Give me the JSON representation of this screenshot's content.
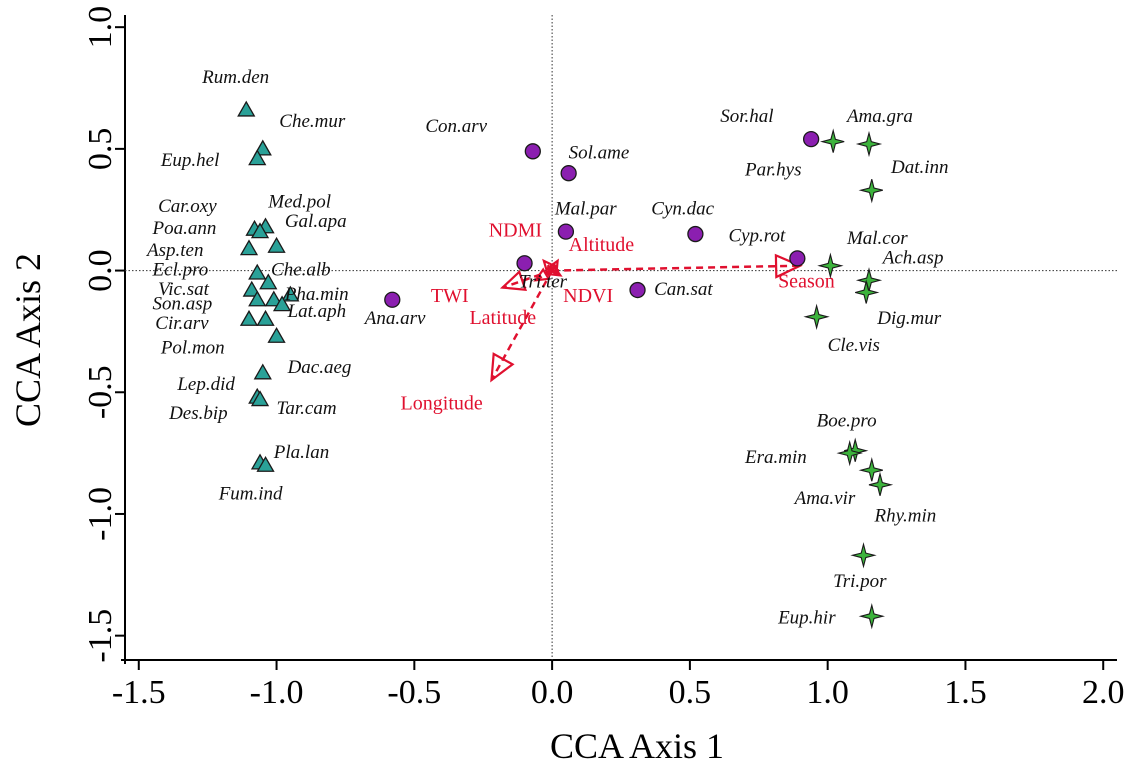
{
  "chart_data": {
    "type": "scatter",
    "title": "",
    "xlabel": "CCA Axis 1",
    "ylabel": "CCA Axis 2",
    "xlim": [
      -1.55,
      2.05
    ],
    "ylim": [
      -1.6,
      1.05
    ],
    "x_ticks": [
      -1.5,
      -1.0,
      -0.5,
      0.0,
      0.5,
      1.0,
      1.5,
      2.0
    ],
    "x_tick_labels": [
      "-1.5",
      "-1.0",
      "-0.5",
      "0.0",
      "0.5",
      "1.0",
      "1.5",
      "2.0"
    ],
    "y_ticks": [
      -1.5,
      -1.0,
      -0.5,
      0.0,
      0.5,
      1.0
    ],
    "y_tick_labels": [
      "-1.5",
      "-1.0",
      "-0.5",
      "0.0",
      "0.5",
      "1.0"
    ],
    "reference_lines": {
      "x": 0,
      "y": 0,
      "style": "dotted"
    },
    "colors": {
      "triangle_fill": "#2aa198",
      "circle_fill": "#8b1fb0",
      "star_fill": "#3cb33c",
      "marker_stroke": "#1a1a1a",
      "arrow": "#e0102f"
    },
    "series": [
      {
        "marker": "triangle",
        "points": [
          {
            "label": "Rum.den",
            "x": -1.11,
            "y": 0.66
          },
          {
            "label": "Che.mur",
            "x": -1.05,
            "y": 0.5
          },
          {
            "label": "Eup.hel",
            "x": -1.07,
            "y": 0.46
          },
          {
            "label": "Car.oxy",
            "x": -1.08,
            "y": 0.17
          },
          {
            "label": "Med.pol",
            "x": -1.04,
            "y": 0.18
          },
          {
            "label": "Poa.ann",
            "x": -1.06,
            "y": 0.16
          },
          {
            "label": "Gal.apa",
            "x": -1.0,
            "y": 0.1
          },
          {
            "label": "Asp.ten",
            "x": -1.1,
            "y": 0.09
          },
          {
            "label": "Ecl.pro",
            "x": -1.07,
            "y": -0.01
          },
          {
            "label": "Che.alb",
            "x": -1.03,
            "y": -0.05
          },
          {
            "label": "Vic.sat",
            "x": -1.09,
            "y": -0.08
          },
          {
            "label": "Pha.min",
            "x": -0.95,
            "y": -0.1
          },
          {
            "label": "Son.asp",
            "x": -1.07,
            "y": -0.12
          },
          {
            "label": "Lat.aph",
            "x": -1.01,
            "y": -0.12
          },
          {
            "label": "Cir.arv",
            "x": -0.98,
            "y": -0.14
          },
          {
            "label": "Pol.mon",
            "x": -1.1,
            "y": -0.2
          },
          {
            "label": "Dac.aeg",
            "x": -1.04,
            "y": -0.2
          },
          {
            "label": "Lep.did",
            "x": -1.0,
            "y": -0.27
          },
          {
            "label": "Des.bip",
            "x": -1.05,
            "y": -0.42
          },
          {
            "label": "Tar.cam",
            "x": -1.07,
            "y": -0.52
          },
          {
            "label": "Pla.lan",
            "x": -1.06,
            "y": -0.53
          },
          {
            "label": "Fum.ind",
            "x": -1.06,
            "y": -0.79
          },
          {
            "label": "Fum.ind",
            "x": -1.04,
            "y": -0.8
          }
        ],
        "label_points": [
          {
            "text": "Rum.den",
            "lx": -1.27,
            "ly": 0.78
          },
          {
            "text": "Che.mur",
            "lx": -0.99,
            "y_hint": true,
            "ly": 0.59
          },
          {
            "text": "Eup.hel",
            "lx": -1.43,
            "ly": 0.44
          },
          {
            "text": "Car.oxy",
            "lx": -1.43,
            "ly": 0.24
          },
          {
            "text": "Med.pol",
            "lx": -1.03,
            "ly": 0.26
          },
          {
            "text": "Poa.ann",
            "lx": -1.45,
            "ly": 0.15
          },
          {
            "text": "Gal.apa",
            "lx": -0.97,
            "ly": 0.18
          },
          {
            "text": "Asp.ten",
            "lx": -1.47,
            "ly": 0.06
          },
          {
            "text": "Ecl.pro",
            "lx": -1.45,
            "ly": -0.02
          },
          {
            "text": "Che.alb",
            "lx": -1.02,
            "ly": -0.02
          },
          {
            "text": "Vic.sat",
            "lx": -1.43,
            "ly": -0.1
          },
          {
            "text": "Pha.min",
            "lx": -0.98,
            "ly": -0.12
          },
          {
            "text": "Son.asp",
            "lx": -1.45,
            "ly": -0.16
          },
          {
            "text": "Lat.aph",
            "lx": -0.96,
            "ly": -0.19
          },
          {
            "text": "Cir.arv",
            "lx": -1.44,
            "ly": -0.24
          },
          {
            "text": "Pol.mon",
            "lx": -1.42,
            "ly": -0.34
          },
          {
            "text": "Dac.aeg",
            "lx": -0.96,
            "ly": -0.42
          },
          {
            "text": "Lep.did",
            "lx": -1.36,
            "ly": -0.49
          },
          {
            "text": "Tar.cam",
            "lx": -1.0,
            "ly": -0.59
          },
          {
            "text": "Des.bip",
            "lx": -1.39,
            "ly": -0.61
          },
          {
            "text": "Pla.lan",
            "lx": -1.01,
            "ly": -0.77
          },
          {
            "text": "Fum.ind",
            "lx": -1.21,
            "ly": -0.94
          }
        ]
      },
      {
        "marker": "circle",
        "points": [
          {
            "label": "Con.arv",
            "x": -0.07,
            "y": 0.49
          },
          {
            "label": "Sol.ame",
            "x": 0.06,
            "y": 0.4
          },
          {
            "label": "Mal.par",
            "x": 0.05,
            "y": 0.16
          },
          {
            "label": "Cyn.dac",
            "x": 0.52,
            "y": 0.15
          },
          {
            "label": "Cyp.rot",
            "x": 0.89,
            "y": 0.05
          },
          {
            "label": "Tri.ter",
            "x": -0.1,
            "y": 0.03
          },
          {
            "label": "Ana.arv",
            "x": -0.58,
            "y": -0.12
          },
          {
            "label": "Can.sat",
            "x": 0.31,
            "y": -0.08
          },
          {
            "label": "Sor.hal",
            "x": 0.94,
            "y": 0.54
          }
        ]
      },
      {
        "marker": "star",
        "points": [
          {
            "label": "Ama.gra",
            "x": 1.02,
            "y": 0.53
          },
          {
            "label": "Ama.gra",
            "x": 1.15,
            "y": 0.52
          },
          {
            "label": "Dat.inn",
            "x": 1.16,
            "y": 0.33
          },
          {
            "label": "Mal.cor",
            "x": 1.01,
            "y": 0.02
          },
          {
            "label": "Ach.asp",
            "x": 1.15,
            "y": -0.04
          },
          {
            "label": "Ach.asp",
            "x": 1.14,
            "y": -0.09
          },
          {
            "label": "Dig.mur",
            "x": 0.96,
            "y": -0.19
          },
          {
            "label": "Boe.pro",
            "x": 1.1,
            "y": -0.74
          },
          {
            "label": "Era.min",
            "x": 1.08,
            "y": -0.75
          },
          {
            "label": "Ama.vir",
            "x": 1.16,
            "y": -0.82
          },
          {
            "label": "Rhy.min",
            "x": 1.19,
            "y": -0.88
          },
          {
            "label": "Tri.por",
            "x": 1.13,
            "y": -1.17
          },
          {
            "label": "Eup.hir",
            "x": 1.16,
            "y": -1.42
          }
        ]
      }
    ],
    "text_labels": [
      {
        "text": "Rum.den",
        "x": -1.27,
        "y": 0.77
      },
      {
        "text": "Che.mur",
        "x": -0.99,
        "y": 0.59
      },
      {
        "text": "Eup.hel",
        "x": -1.42,
        "y": 0.43
      },
      {
        "text": "Car.oxy",
        "x": -1.43,
        "y": 0.24
      },
      {
        "text": "Med.pol",
        "x": -1.03,
        "y": 0.26
      },
      {
        "text": "Poa.ann",
        "x": -1.45,
        "y": 0.15
      },
      {
        "text": "Gal.apa",
        "x": -0.97,
        "y": 0.18
      },
      {
        "text": "Asp.ten",
        "x": -1.47,
        "y": 0.06
      },
      {
        "text": "Ecl.pro",
        "x": -1.45,
        "y": -0.02
      },
      {
        "text": "Che.alb",
        "x": -1.02,
        "y": -0.02
      },
      {
        "text": "Vic.sat",
        "x": -1.43,
        "y": -0.1
      },
      {
        "text": "Pha.min",
        "x": -0.97,
        "y": -0.12
      },
      {
        "text": "Son.asp",
        "x": -1.45,
        "y": -0.16
      },
      {
        "text": "Lat.aph",
        "x": -0.96,
        "y": -0.19
      },
      {
        "text": "Cir.arv",
        "x": -1.44,
        "y": -0.24
      },
      {
        "text": "Pol.mon",
        "x": -1.42,
        "y": -0.34
      },
      {
        "text": "Dac.aeg",
        "x": -0.96,
        "y": -0.42
      },
      {
        "text": "Lep.did",
        "x": -1.36,
        "y": -0.49
      },
      {
        "text": "Tar.cam",
        "x": -1.0,
        "y": -0.59
      },
      {
        "text": "Des.bip",
        "x": -1.39,
        "y": -0.61
      },
      {
        "text": "Pla.lan",
        "x": -1.01,
        "y": -0.77
      },
      {
        "text": "Fum.ind",
        "x": -1.21,
        "y": -0.94
      },
      {
        "text": "Con.arv",
        "x": -0.46,
        "y": 0.57
      },
      {
        "text": "Sol.ame",
        "x": 0.06,
        "y": 0.46
      },
      {
        "text": "Mal.par",
        "x": 0.01,
        "y": 0.23
      },
      {
        "text": "Cyn.dac",
        "x": 0.36,
        "y": 0.23
      },
      {
        "text": "Sor.hal",
        "x": 0.61,
        "y": 0.61
      },
      {
        "text": "Ama.gra",
        "x": 1.07,
        "y": 0.61
      },
      {
        "text": "Par.hys",
        "x": 0.7,
        "y": 0.39
      },
      {
        "text": "Dat.inn",
        "x": 1.23,
        "y": 0.4
      },
      {
        "text": "Cyp.rot",
        "x": 0.64,
        "y": 0.12
      },
      {
        "text": "Mal.cor",
        "x": 1.07,
        "y": 0.11
      },
      {
        "text": "Ach.asp",
        "x": 1.2,
        "y": 0.03
      },
      {
        "text": "Tri.ter",
        "x": -0.12,
        "y": -0.07
      },
      {
        "text": "Ana.arv",
        "x": -0.68,
        "y": -0.22
      },
      {
        "text": "Can.sat",
        "x": 0.37,
        "y": -0.1
      },
      {
        "text": "Dig.mur",
        "x": 1.18,
        "y": -0.22
      },
      {
        "text": "Cle.vis",
        "x": 1.0,
        "y": -0.33
      },
      {
        "text": "Boe.pro",
        "x": 0.96,
        "y": -0.64
      },
      {
        "text": "Era.min",
        "x": 0.7,
        "y": -0.79
      },
      {
        "text": "Ama.vir",
        "x": 0.88,
        "y": -0.96
      },
      {
        "text": "Rhy.min",
        "x": 1.17,
        "y": -1.03
      },
      {
        "text": "Tri.por",
        "x": 1.02,
        "y": -1.3
      },
      {
        "text": "Eup.hir",
        "x": 0.82,
        "y": -1.45
      }
    ],
    "env_vectors": [
      {
        "name": "Season",
        "x": 0.9,
        "y": 0.02,
        "label_x": 0.82,
        "label_y": -0.07
      },
      {
        "name": "Longitude",
        "x": -0.22,
        "y": -0.45,
        "label_x": -0.55,
        "label_y": -0.57
      },
      {
        "name": "TWI",
        "x": -0.18,
        "y": -0.07,
        "label_x": -0.44,
        "label_y": -0.13
      },
      {
        "name": "Latitude",
        "x": -0.06,
        "y": -0.04,
        "label_x": -0.3,
        "label_y": -0.22
      },
      {
        "name": "NDMI",
        "x": -0.03,
        "y": 0.04,
        "label_x": -0.23,
        "label_y": 0.14
      },
      {
        "name": "Altitude",
        "x": 0.02,
        "y": 0.04,
        "label_x": 0.06,
        "label_y": 0.08
      },
      {
        "name": "NDVI",
        "x": 0.03,
        "y": -0.02,
        "label_x": 0.04,
        "label_y": -0.13
      }
    ]
  }
}
